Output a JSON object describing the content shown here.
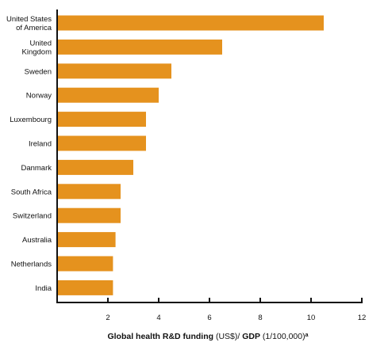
{
  "chart_data": {
    "type": "bar",
    "orientation": "horizontal",
    "categories": [
      [
        "United States",
        "of America"
      ],
      [
        "United",
        "Kingdom"
      ],
      [
        "Sweden"
      ],
      [
        "Norway"
      ],
      [
        "Luxembourg"
      ],
      [
        "Ireland"
      ],
      [
        "Danmark"
      ],
      [
        "South Africa"
      ],
      [
        "Switzerland"
      ],
      [
        "Australia"
      ],
      [
        "Netherlands"
      ],
      [
        "India"
      ]
    ],
    "values": [
      10.5,
      6.5,
      4.5,
      4.0,
      3.5,
      3.5,
      3.0,
      2.5,
      2.5,
      2.3,
      2.2,
      2.2
    ],
    "xlim": [
      0,
      12
    ],
    "xticks": [
      2,
      4,
      6,
      8,
      10,
      12
    ],
    "xlabel": {
      "bold_part": "Global health R&D funding",
      "normal_part": " (US$)/ ",
      "bold_part2": "GDP",
      "normal_part2": " (1/100,000)",
      "superscript": "a"
    },
    "bar_color": "#e5921e",
    "axis_color": "#111111",
    "grid": false
  }
}
